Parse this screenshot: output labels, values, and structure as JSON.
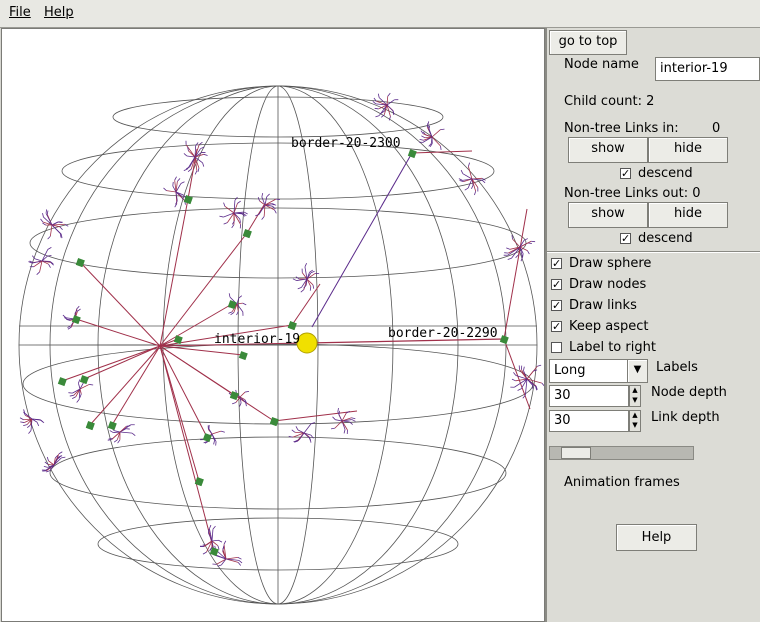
{
  "menubar": {
    "file": "File",
    "help": "Help"
  },
  "canvas": {
    "labels": {
      "border_2300": "border-20-2300",
      "border_2290": "border-20-2290",
      "interior": "interior-19"
    },
    "colors": {
      "links": "#a0304a",
      "tree": "#5a2a8a",
      "nodes": "#3a8a3a",
      "selected": "#f0e000",
      "sphere": "#555555"
    }
  },
  "panel": {
    "go_to_top": "go to top",
    "node_name_label": "Node name",
    "node_name_value": "interior-19",
    "child_count": "Child count:  2",
    "links_in_label": "Non-tree Links in:",
    "links_in_count": "0",
    "show": "show",
    "hide": "hide",
    "descend": "descend",
    "links_out": "Non-tree Links out:  0",
    "draw_sphere": "Draw sphere",
    "draw_nodes": "Draw nodes",
    "draw_links": "Draw links",
    "keep_aspect": "Keep aspect",
    "label_to_right": "Label to right",
    "labels_select": "Long",
    "labels_label": "Labels",
    "node_depth_value": "30",
    "node_depth_label": "Node depth",
    "link_depth_value": "30",
    "link_depth_label": "Link depth",
    "animation_frames_label": "Animation frames",
    "animation_frames_value": 0.08,
    "help": "Help",
    "checks": {
      "draw_sphere": true,
      "draw_nodes": true,
      "draw_links": true,
      "keep_aspect": true,
      "label_to_right": false,
      "descend_in": true,
      "descend_out": true
    }
  }
}
